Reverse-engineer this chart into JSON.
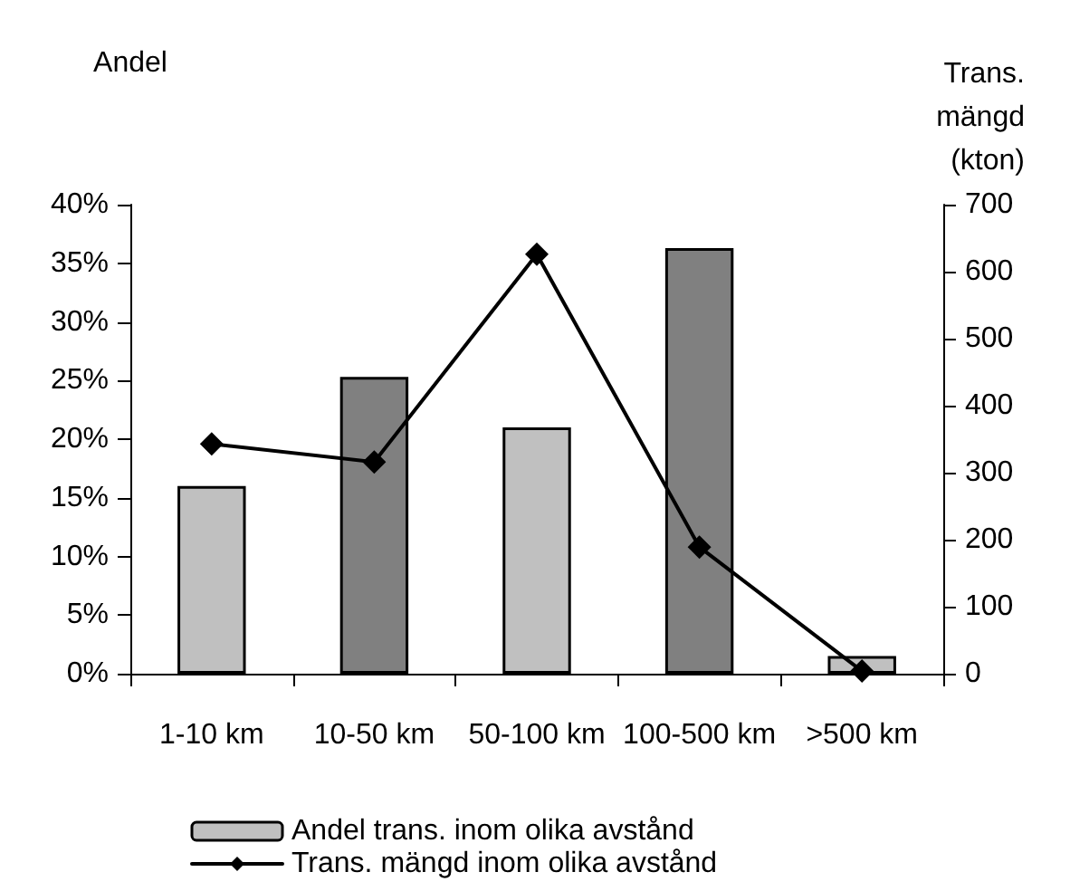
{
  "chart_data": {
    "type": "bar",
    "ylabel": "Andel",
    "y2label": "Trans. mängd (kton)",
    "categories": [
      "1-10 km",
      "10-50 km",
      "50-100 km",
      "100-500 km",
      ">500 km"
    ],
    "series": [
      {
        "name": "Andel trans. inom olika avstånd",
        "color": "#c0c0c0",
        "colors": [
          "#c0c0c0",
          "#808080",
          "#c0c0c0",
          "#808080",
          "#c0c0c0"
        ],
        "values": [
          16,
          25.3,
          21,
          36.3,
          1.5
        ]
      },
      {
        "name": "Trans. mängd inom olika avstånd",
        "type": "line",
        "axis": "y2",
        "color": "#000000",
        "marker": "diamond",
        "values": [
          343,
          316,
          626,
          189,
          4
        ]
      }
    ],
    "ylim": [
      0,
      40
    ],
    "yticks": [
      {
        "value": 0,
        "label": "0%"
      },
      {
        "value": 5,
        "label": "5%"
      },
      {
        "value": 10,
        "label": "10%"
      },
      {
        "value": 15,
        "label": "15%"
      },
      {
        "value": 20,
        "label": "20%"
      },
      {
        "value": 25,
        "label": "25%"
      },
      {
        "value": 30,
        "label": "30%"
      },
      {
        "value": 35,
        "label": "35%"
      },
      {
        "value": 40,
        "label": "40%"
      }
    ],
    "y2lim": [
      0,
      700
    ],
    "y2ticks": [
      0,
      100,
      200,
      300,
      400,
      500,
      600,
      700
    ],
    "grid": false,
    "legend": "bottom left"
  }
}
